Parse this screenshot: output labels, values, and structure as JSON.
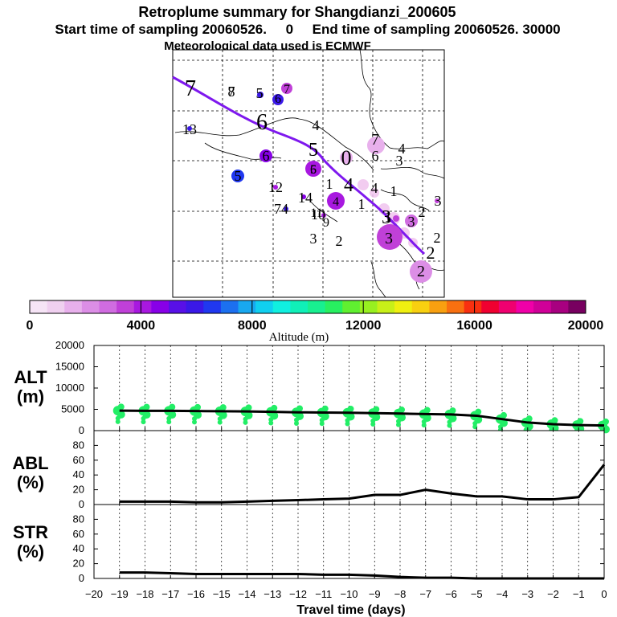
{
  "title": {
    "line1": "Retroplume summary for Shangdianzi_200605",
    "line2": "Start time of sampling 20060526.     0     End time of sampling 20060526. 30000",
    "line3": "Meteorological data used is ECMWF"
  },
  "chart_data": [
    {
      "type": "map",
      "title": "Retroplume trajectory map",
      "trajectory_label_sequence": [
        "7",
        "6",
        "5",
        "4",
        "3",
        "2"
      ],
      "cluster_labels": [
        "7",
        "8",
        "5",
        "6",
        "7",
        "13",
        "6",
        "4",
        "7",
        "4",
        "5",
        "0",
        "6",
        "3",
        "6",
        "5",
        "12",
        "1",
        "14",
        "4",
        "74",
        "11",
        "4",
        "1",
        "1",
        "10",
        "9",
        "1",
        "3",
        "3",
        "2",
        "3",
        "2",
        "3",
        "2",
        "2"
      ]
    },
    {
      "type": "colorbar",
      "xlabel": "Altitude (m)",
      "range": [
        0,
        20000
      ],
      "tick_labels": [
        "0",
        "4000",
        "8000",
        "12000",
        "16000",
        "20000"
      ],
      "palette": [
        "#f6e4f6",
        "#f0d0f0",
        "#e8b0ec",
        "#dc8ee6",
        "#d06ce0",
        "#c040d8",
        "#a818e0",
        "#8800e8",
        "#5810e8",
        "#3a18e8",
        "#2038f0",
        "#1c70f0",
        "#18a8f0",
        "#10d0f0",
        "#10f0e0",
        "#10f0b8",
        "#18f090",
        "#28f060",
        "#60f030",
        "#98f020",
        "#c8f018",
        "#f0f010",
        "#f8d010",
        "#f8a010",
        "#f87010",
        "#f83010",
        "#f00030",
        "#f00070",
        "#f000a8",
        "#d00098",
        "#a80080",
        "#780060"
      ]
    },
    {
      "type": "line",
      "name": "altitude",
      "ylabel": "ALT\n(m)",
      "ylim": [
        0,
        20000
      ],
      "yticks": [
        0,
        5000,
        10000,
        15000,
        20000
      ],
      "ytick_labels": [
        "0",
        "5000",
        "10000",
        "15000",
        "20000"
      ],
      "line_color": "#000000",
      "cluster_color": "#22ee66",
      "x": [
        -19,
        -18,
        -17,
        -16,
        -15,
        -14,
        -13,
        -12,
        -11,
        -10,
        -9,
        -8,
        -7,
        -6,
        -5,
        -4,
        -3,
        -2,
        -1,
        0
      ],
      "values": [
        4700,
        4650,
        4650,
        4600,
        4550,
        4500,
        4400,
        4300,
        4250,
        4200,
        4100,
        4000,
        3900,
        3800,
        3500,
        2700,
        1900,
        1500,
        1300,
        1200
      ]
    },
    {
      "type": "line",
      "name": "abl",
      "ylabel": "ABL\n(%)",
      "ylim": [
        0,
        100
      ],
      "yticks": [
        0,
        20,
        40,
        60,
        80
      ],
      "ytick_labels": [
        "0",
        "20",
        "40",
        "60",
        "80"
      ],
      "line_color": "#000000",
      "x": [
        -19,
        -18,
        -17,
        -16,
        -15,
        -14,
        -13,
        -12,
        -11,
        -10,
        -9,
        -8,
        -7,
        -6,
        -5,
        -4,
        -3,
        -2,
        -1,
        0
      ],
      "values": [
        4,
        4,
        4,
        3,
        3,
        4,
        5,
        6,
        7,
        8,
        13,
        13,
        20,
        15,
        11,
        11,
        7,
        7,
        10,
        54
      ]
    },
    {
      "type": "line",
      "name": "str",
      "ylabel": "STR\n(%)",
      "ylim": [
        0,
        100
      ],
      "yticks": [
        0,
        20,
        40,
        60,
        80
      ],
      "ytick_labels": [
        "0",
        "20",
        "40",
        "60",
        "80"
      ],
      "line_color": "#000000",
      "x": [
        -19,
        -18,
        -17,
        -16,
        -15,
        -14,
        -13,
        -12,
        -11,
        -10,
        -9,
        -8,
        -7,
        -6,
        -5,
        -4,
        -3,
        -2,
        -1,
        0
      ],
      "values": [
        8,
        8,
        7,
        6,
        6,
        6,
        6,
        6,
        5,
        5,
        4,
        2,
        1,
        1,
        0,
        0,
        0,
        0,
        0,
        0
      ],
      "xlabel": "Travel time (days)",
      "xlim": [
        -20,
        0
      ],
      "xticks": [
        -20,
        -19,
        -18,
        -17,
        -16,
        -15,
        -14,
        -13,
        -12,
        -11,
        -10,
        -9,
        -8,
        -7,
        -6,
        -5,
        -4,
        -3,
        -2,
        -1,
        0
      ],
      "xtick_labels": [
        "−20",
        "−19",
        "−18",
        "−17",
        "−16",
        "−15",
        "−14",
        "−13",
        "−12",
        "−11",
        "−10",
        "−9",
        "−8",
        "−7",
        "−6",
        "−5",
        "−4",
        "−3",
        "−2",
        "−1",
        "0"
      ]
    }
  ]
}
